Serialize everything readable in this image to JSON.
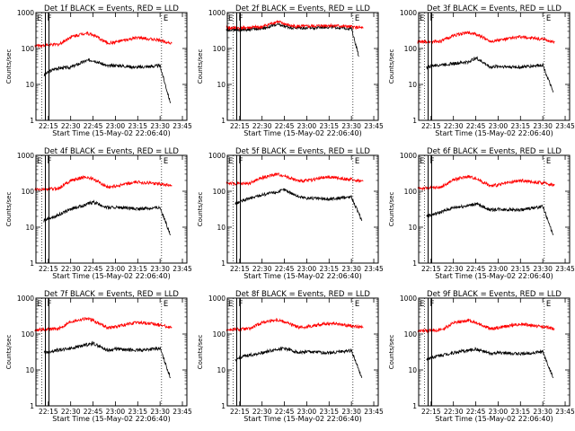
{
  "figure": {
    "panel_title_template": "Det {n}f BLACK = Events, RED = LLD",
    "xlabel": "Start Time (15-May-02 22:06:40)",
    "ylabel": "Counts/sec",
    "colors": {
      "events": "#000000",
      "lld": "#ff0000",
      "axes": "#000000",
      "background": "#ffffff"
    }
  },
  "chart_data": [
    {
      "type": "line",
      "title": "Det 1f BLACK = Events, RED = LLD",
      "xlabel": "Start Time (15-May-02 22:06:40)",
      "ylabel": "Counts/sec",
      "y_scale": "log",
      "ylim": [
        1,
        1000
      ],
      "xlim": [
        "22:06:40",
        "23:48:00"
      ],
      "x_ticks": [
        "22:15",
        "22:30",
        "22:45",
        "23:00",
        "23:15",
        "23:30",
        "23:45"
      ],
      "y_ticks": [
        "1",
        "10",
        "100",
        "1000"
      ],
      "series": [
        {
          "name": "Events",
          "color": "#000000",
          "x": [
            "22:12",
            "22:15",
            "22:20",
            "22:30",
            "22:40",
            "22:45",
            "22:55",
            "23:00",
            "23:15",
            "23:30",
            "23:37"
          ],
          "y": [
            18,
            22,
            28,
            30,
            45,
            48,
            32,
            34,
            30,
            33,
            3
          ]
        },
        {
          "name": "LLD",
          "color": "#ff0000",
          "x": [
            "22:06",
            "22:15",
            "22:22",
            "22:30",
            "22:40",
            "22:45",
            "22:55",
            "23:00",
            "23:15",
            "23:30",
            "23:38"
          ],
          "y": [
            120,
            125,
            130,
            210,
            270,
            240,
            140,
            150,
            200,
            170,
            140
          ]
        }
      ],
      "markers": [
        {
          "label": "F",
          "x": "22:13"
        },
        {
          "label": "E",
          "x": "23:31"
        }
      ]
    },
    {
      "type": "line",
      "title": "Det 2f BLACK = Events, RED = LLD",
      "xlabel": "Start Time (15-May-02 22:06:40)",
      "ylabel": "Counts/sec",
      "y_scale": "log",
      "ylim": [
        1,
        1000
      ],
      "xlim": [
        "22:06:40",
        "23:48:00"
      ],
      "x_ticks": [
        "22:15",
        "22:30",
        "22:45",
        "23:00",
        "23:15",
        "23:30",
        "23:45"
      ],
      "y_ticks": [
        "1",
        "10",
        "100",
        "1000"
      ],
      "series": [
        {
          "name": "Events",
          "color": "#000000",
          "x": [
            "22:06",
            "22:15",
            "22:30",
            "22:40",
            "22:50",
            "23:00",
            "23:15",
            "23:30",
            "23:35"
          ],
          "y": [
            340,
            330,
            360,
            460,
            380,
            370,
            400,
            360,
            60
          ]
        },
        {
          "name": "LLD",
          "color": "#ff0000",
          "x": [
            "22:06",
            "22:15",
            "22:30",
            "22:40",
            "22:50",
            "23:00",
            "23:15",
            "23:30",
            "23:38"
          ],
          "y": [
            380,
            370,
            400,
            560,
            420,
            410,
            440,
            400,
            370
          ]
        }
      ],
      "markers": [
        {
          "label": "F",
          "x": "22:13"
        },
        {
          "label": "E",
          "x": "23:31"
        }
      ]
    },
    {
      "type": "line",
      "title": "Det 3f BLACK = Events, RED = LLD",
      "xlabel": "Start Time (15-May-02 22:06:40)",
      "ylabel": "Counts/sec",
      "y_scale": "log",
      "ylim": [
        1,
        1000
      ],
      "xlim": [
        "22:06:40",
        "23:48:00"
      ],
      "x_ticks": [
        "22:15",
        "22:30",
        "22:45",
        "23:00",
        "23:15",
        "23:30",
        "23:45"
      ],
      "y_ticks": [
        "1",
        "10",
        "100",
        "1000"
      ],
      "series": [
        {
          "name": "Events",
          "color": "#000000",
          "x": [
            "22:12",
            "22:15",
            "22:20",
            "22:30",
            "22:40",
            "22:45",
            "22:55",
            "23:00",
            "23:15",
            "23:30",
            "23:37"
          ],
          "y": [
            30,
            32,
            35,
            38,
            42,
            55,
            30,
            32,
            30,
            35,
            6
          ]
        },
        {
          "name": "LLD",
          "color": "#ff0000",
          "x": [
            "22:06",
            "22:15",
            "22:22",
            "22:30",
            "22:40",
            "22:45",
            "22:55",
            "23:00",
            "23:15",
            "23:30",
            "23:38"
          ],
          "y": [
            150,
            155,
            160,
            230,
            280,
            250,
            160,
            170,
            210,
            180,
            150
          ]
        }
      ],
      "markers": [
        {
          "label": "F",
          "x": "22:13"
        },
        {
          "label": "E",
          "x": "23:31"
        }
      ]
    },
    {
      "type": "line",
      "title": "Det 4f BLACK = Events, RED = LLD",
      "xlabel": "Start Time (15-May-02 22:06:40)",
      "ylabel": "Counts/sec",
      "y_scale": "log",
      "ylim": [
        1,
        1000
      ],
      "xlim": [
        "22:06:40",
        "23:48:00"
      ],
      "x_ticks": [
        "22:15",
        "22:30",
        "22:45",
        "23:00",
        "23:15",
        "23:30",
        "23:45"
      ],
      "y_ticks": [
        "1",
        "10",
        "100",
        "1000"
      ],
      "series": [
        {
          "name": "Events",
          "color": "#000000",
          "x": [
            "22:12",
            "22:15",
            "22:20",
            "22:30",
            "22:40",
            "22:45",
            "22:55",
            "23:00",
            "23:15",
            "23:30",
            "23:37"
          ],
          "y": [
            15,
            18,
            20,
            32,
            42,
            50,
            35,
            36,
            32,
            36,
            6
          ]
        },
        {
          "name": "LLD",
          "color": "#ff0000",
          "x": [
            "22:06",
            "22:15",
            "22:22",
            "22:30",
            "22:40",
            "22:45",
            "22:55",
            "23:00",
            "23:15",
            "23:30",
            "23:38"
          ],
          "y": [
            110,
            115,
            120,
            200,
            250,
            220,
            130,
            140,
            180,
            160,
            140
          ]
        }
      ],
      "markers": [
        {
          "label": "F",
          "x": "22:13"
        },
        {
          "label": "E",
          "x": "23:31"
        }
      ]
    },
    {
      "type": "line",
      "title": "Det 5f BLACK = Events, RED = LLD",
      "xlabel": "Start Time (15-May-02 22:06:40)",
      "ylabel": "Counts/sec",
      "y_scale": "log",
      "ylim": [
        1,
        1000
      ],
      "xlim": [
        "22:06:40",
        "23:48:00"
      ],
      "x_ticks": [
        "22:15",
        "22:30",
        "22:45",
        "23:00",
        "23:15",
        "23:30",
        "23:45"
      ],
      "y_ticks": [
        "1",
        "10",
        "100",
        "1000"
      ],
      "series": [
        {
          "name": "Events",
          "color": "#000000",
          "x": [
            "22:12",
            "22:15",
            "22:20",
            "22:30",
            "22:40",
            "22:45",
            "22:55",
            "23:00",
            "23:15",
            "23:30",
            "23:37"
          ],
          "y": [
            45,
            50,
            60,
            80,
            95,
            110,
            70,
            65,
            60,
            70,
            15
          ]
        },
        {
          "name": "LLD",
          "color": "#ff0000",
          "x": [
            "22:06",
            "22:15",
            "22:22",
            "22:30",
            "22:40",
            "22:45",
            "22:55",
            "23:00",
            "23:15",
            "23:30",
            "23:38"
          ],
          "y": [
            170,
            160,
            170,
            240,
            300,
            270,
            190,
            200,
            250,
            210,
            190
          ]
        }
      ],
      "markers": [
        {
          "label": "F",
          "x": "22:13"
        },
        {
          "label": "E",
          "x": "23:31"
        }
      ]
    },
    {
      "type": "line",
      "title": "Det 6f BLACK = Events, RED = LLD",
      "xlabel": "Start Time (15-May-02 22:06:40)",
      "ylabel": "Counts/sec",
      "y_scale": "log",
      "ylim": [
        1,
        1000
      ],
      "xlim": [
        "22:06:40",
        "23:48:00"
      ],
      "x_ticks": [
        "22:15",
        "22:30",
        "22:45",
        "23:00",
        "23:15",
        "23:30",
        "23:45"
      ],
      "y_ticks": [
        "1",
        "10",
        "100",
        "1000"
      ],
      "series": [
        {
          "name": "Events",
          "color": "#000000",
          "x": [
            "22:12",
            "22:15",
            "22:20",
            "22:30",
            "22:40",
            "22:45",
            "22:55",
            "23:00",
            "23:15",
            "23:30",
            "23:37"
          ],
          "y": [
            20,
            22,
            25,
            35,
            40,
            45,
            30,
            32,
            30,
            38,
            6
          ]
        },
        {
          "name": "LLD",
          "color": "#ff0000",
          "x": [
            "22:06",
            "22:15",
            "22:22",
            "22:30",
            "22:40",
            "22:45",
            "22:55",
            "23:00",
            "23:15",
            "23:30",
            "23:38"
          ],
          "y": [
            120,
            125,
            130,
            210,
            260,
            230,
            140,
            150,
            200,
            170,
            150
          ]
        }
      ],
      "markers": [
        {
          "label": "F",
          "x": "22:13"
        },
        {
          "label": "E",
          "x": "23:31"
        }
      ]
    },
    {
      "type": "line",
      "title": "Det 7f BLACK = Events, RED = LLD",
      "xlabel": "Start Time (15-May-02 22:06:40)",
      "ylabel": "Counts/sec",
      "y_scale": "log",
      "ylim": [
        1,
        1000
      ],
      "xlim": [
        "22:06:40",
        "23:48:00"
      ],
      "x_ticks": [
        "22:15",
        "22:30",
        "22:45",
        "23:00",
        "23:15",
        "23:30",
        "23:45"
      ],
      "y_ticks": [
        "1",
        "10",
        "100",
        "1000"
      ],
      "series": [
        {
          "name": "Events",
          "color": "#000000",
          "x": [
            "22:12",
            "22:15",
            "22:20",
            "22:30",
            "22:40",
            "22:45",
            "22:55",
            "23:00",
            "23:15",
            "23:30",
            "23:37"
          ],
          "y": [
            30,
            32,
            35,
            40,
            50,
            55,
            35,
            38,
            35,
            40,
            6
          ]
        },
        {
          "name": "LLD",
          "color": "#ff0000",
          "x": [
            "22:06",
            "22:15",
            "22:22",
            "22:30",
            "22:40",
            "22:45",
            "22:55",
            "23:00",
            "23:15",
            "23:30",
            "23:38"
          ],
          "y": [
            130,
            135,
            140,
            220,
            270,
            240,
            150,
            160,
            210,
            180,
            150
          ]
        }
      ],
      "markers": [
        {
          "label": "F",
          "x": "22:13"
        },
        {
          "label": "E",
          "x": "23:31"
        }
      ]
    },
    {
      "type": "line",
      "title": "Det 8f BLACK = Events, RED = LLD",
      "xlabel": "Start Time (15-May-02 22:06:40)",
      "ylabel": "Counts/sec",
      "y_scale": "log",
      "ylim": [
        1,
        1000
      ],
      "xlim": [
        "22:06:40",
        "23:48:00"
      ],
      "x_ticks": [
        "22:15",
        "22:30",
        "22:45",
        "23:00",
        "23:15",
        "23:30",
        "23:45"
      ],
      "y_ticks": [
        "1",
        "10",
        "100",
        "1000"
      ],
      "series": [
        {
          "name": "Events",
          "color": "#000000",
          "x": [
            "22:12",
            "22:15",
            "22:20",
            "22:30",
            "22:40",
            "22:45",
            "22:55",
            "23:00",
            "23:15",
            "23:30",
            "23:37"
          ],
          "y": [
            18,
            22,
            25,
            30,
            38,
            40,
            30,
            32,
            30,
            35,
            6
          ]
        },
        {
          "name": "LLD",
          "color": "#ff0000",
          "x": [
            "22:06",
            "22:15",
            "22:22",
            "22:30",
            "22:40",
            "22:45",
            "22:55",
            "23:00",
            "23:15",
            "23:30",
            "23:38"
          ],
          "y": [
            130,
            135,
            140,
            210,
            250,
            220,
            150,
            160,
            200,
            170,
            150
          ]
        }
      ],
      "markers": [
        {
          "label": "F",
          "x": "22:13"
        },
        {
          "label": "E",
          "x": "23:31"
        }
      ]
    },
    {
      "type": "line",
      "title": "Det 9f BLACK = Events, RED = LLD",
      "xlabel": "Start Time (15-May-02 22:06:40)",
      "ylabel": "Counts/sec",
      "y_scale": "log",
      "ylim": [
        1,
        1000
      ],
      "xlim": [
        "22:06:40",
        "23:48:00"
      ],
      "x_ticks": [
        "22:15",
        "22:30",
        "22:45",
        "23:00",
        "23:15",
        "23:30",
        "23:45"
      ],
      "y_ticks": [
        "1",
        "10",
        "100",
        "1000"
      ],
      "series": [
        {
          "name": "Events",
          "color": "#000000",
          "x": [
            "22:12",
            "22:15",
            "22:20",
            "22:30",
            "22:40",
            "22:45",
            "22:55",
            "23:00",
            "23:15",
            "23:30",
            "23:37"
          ],
          "y": [
            20,
            22,
            25,
            30,
            35,
            38,
            28,
            30,
            28,
            32,
            6
          ]
        },
        {
          "name": "LLD",
          "color": "#ff0000",
          "x": [
            "22:06",
            "22:15",
            "22:22",
            "22:30",
            "22:40",
            "22:45",
            "22:55",
            "23:00",
            "23:15",
            "23:30",
            "23:38"
          ],
          "y": [
            120,
            125,
            130,
            200,
            240,
            210,
            140,
            150,
            190,
            160,
            140
          ]
        }
      ],
      "markers": [
        {
          "label": "F",
          "x": "22:13"
        },
        {
          "label": "E",
          "x": "23:31"
        }
      ]
    }
  ]
}
